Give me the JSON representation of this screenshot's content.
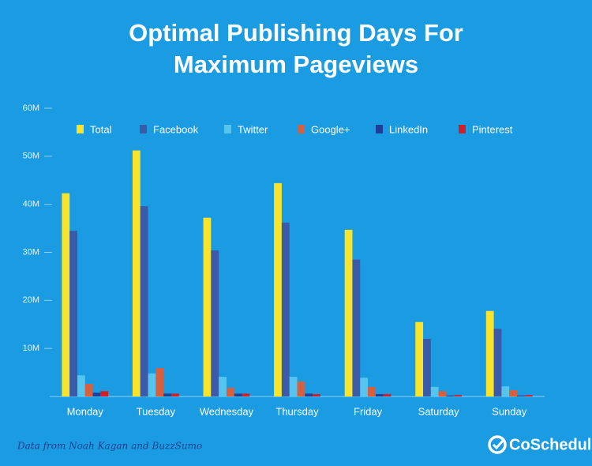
{
  "chart_data": {
    "type": "bar",
    "title": "Optimal Publishing Days For Maximum Pageviews",
    "categories": [
      "Monday",
      "Tuesday",
      "Wednesday",
      "Thursday",
      "Friday",
      "Saturday",
      "Sunday"
    ],
    "series": [
      {
        "name": "Total",
        "color": "#f8e42c",
        "values": [
          42.3,
          51.2,
          37.2,
          44.4,
          34.7,
          15.5,
          17.8
        ]
      },
      {
        "name": "Facebook",
        "color": "#3b5ba8",
        "values": [
          34.5,
          39.6,
          30.4,
          36.2,
          28.5,
          12.0,
          14.1
        ]
      },
      {
        "name": "Twitter",
        "color": "#55c5f0",
        "values": [
          4.4,
          4.8,
          4.1,
          4.1,
          3.9,
          2.0,
          2.1
        ]
      },
      {
        "name": "Google+",
        "color": "#d6603e",
        "values": [
          2.6,
          5.9,
          1.8,
          3.1,
          2.0,
          1.1,
          1.3
        ]
      },
      {
        "name": "LinkedIn",
        "color": "#1d3f9a",
        "values": [
          0.8,
          0.6,
          0.6,
          0.6,
          0.5,
          0.2,
          0.2
        ]
      },
      {
        "name": "Pinterest",
        "color": "#cf2027",
        "values": [
          1.1,
          0.6,
          0.6,
          0.5,
          0.5,
          0.3,
          0.3
        ]
      }
    ],
    "ylim": [
      0,
      60
    ],
    "yticks": [
      {
        "value": 10,
        "label": "10M"
      },
      {
        "value": 20,
        "label": "20M"
      },
      {
        "value": 30,
        "label": "30M"
      },
      {
        "value": 40,
        "label": "40M"
      },
      {
        "value": 50,
        "label": "50M"
      },
      {
        "value": 60,
        "label": "60M"
      }
    ],
    "grid": false,
    "legend": "top",
    "source": "Data from Noah Kagan and BuzzSumo",
    "brand": "CoSchedule"
  }
}
